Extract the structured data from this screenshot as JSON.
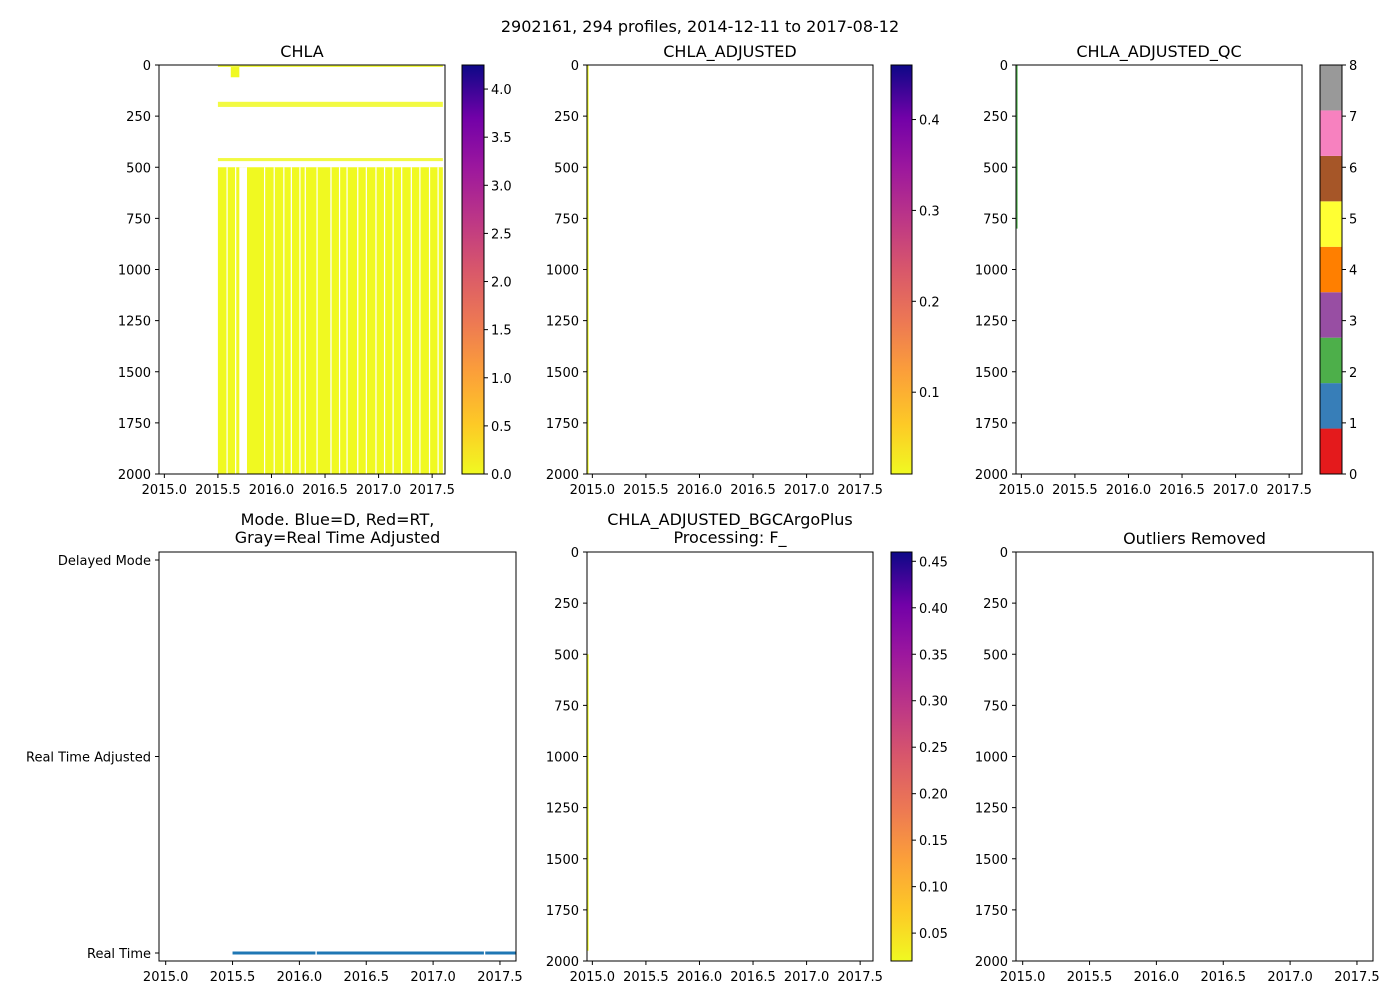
{
  "suptitle": "2902161, 294 profiles, 2014-12-11 to 2017-08-12",
  "chart_data": [
    {
      "id": "chla",
      "type": "heatmap",
      "title": "CHLA",
      "xlim": [
        2014.95,
        2017.62
      ],
      "ylim": [
        2000,
        0
      ],
      "xticks": [
        2015.0,
        2015.5,
        2016.0,
        2016.5,
        2017.0,
        2017.5
      ],
      "yticks": [
        0,
        250,
        500,
        750,
        1000,
        1250,
        1500,
        1750,
        2000
      ],
      "data_color": "#f0f921",
      "data_extent": {
        "x": [
          2015.5,
          2017.6
        ],
        "y": [
          0,
          2000
        ]
      },
      "colorbar": {
        "cmap": "plasma_r",
        "range": [
          0,
          4.25
        ],
        "ticks": [
          "0.0",
          "0.5",
          "1.0",
          "1.5",
          "2.0",
          "2.5",
          "3.0",
          "3.5",
          "4.0"
        ],
        "tick_values": [
          0,
          0.5,
          1.0,
          1.5,
          2.0,
          2.5,
          3.0,
          3.5,
          4.0
        ]
      }
    },
    {
      "id": "chla-adjusted",
      "type": "heatmap",
      "title": "CHLA_ADJUSTED",
      "xlim": [
        2014.95,
        2017.62
      ],
      "ylim": [
        2000,
        0
      ],
      "xticks": [
        2015.0,
        2015.5,
        2016.0,
        2016.5,
        2017.0,
        2017.5
      ],
      "yticks": [
        0,
        250,
        500,
        750,
        1000,
        1250,
        1500,
        1750,
        2000
      ],
      "data_color": "#f0f921",
      "data_extent": {
        "x": [
          2014.95,
          2014.96
        ],
        "y": [
          0,
          2000
        ]
      },
      "colorbar": {
        "cmap": "plasma_r",
        "range": [
          0.01,
          0.46
        ],
        "ticks": [
          "0.1",
          "0.2",
          "0.3",
          "0.4"
        ],
        "tick_values": [
          0.1,
          0.2,
          0.3,
          0.4
        ]
      }
    },
    {
      "id": "chla-adjusted-qc",
      "type": "heatmap",
      "title": "CHLA_ADJUSTED_QC",
      "xlim": [
        2014.95,
        2017.62
      ],
      "ylim": [
        2000,
        0
      ],
      "xticks": [
        2015.0,
        2015.5,
        2016.0,
        2016.5,
        2017.0,
        2017.5
      ],
      "yticks": [
        0,
        250,
        500,
        750,
        1000,
        1250,
        1500,
        1750,
        2000
      ],
      "data_color": "#4daf4a",
      "data_extent": {
        "x": [
          2014.95,
          2014.96
        ],
        "y": [
          0,
          800
        ]
      },
      "colorbar": {
        "cmap": "categorical",
        "range": [
          0,
          8
        ],
        "ticks": [
          "0",
          "1",
          "2",
          "3",
          "4",
          "5",
          "6",
          "7",
          "8"
        ],
        "tick_values": [
          0,
          1,
          2,
          3,
          4,
          5,
          6,
          7,
          8
        ],
        "segment_colors": [
          "#e41a1c",
          "#377eb8",
          "#4daf4a",
          "#984ea3",
          "#ff7f00",
          "#ffff33",
          "#a65628",
          "#f781bf",
          "#999999"
        ]
      }
    },
    {
      "id": "mode",
      "type": "line",
      "title_lines": [
        "Mode. Blue=D, Red=RT,",
        "Gray=Real Time Adjusted"
      ],
      "xlim": [
        2014.95,
        2017.62
      ],
      "ylim": [
        0,
        2
      ],
      "xticks": [
        2015.0,
        2015.5,
        2016.0,
        2016.5,
        2017.0,
        2017.5
      ],
      "ytick_labels": [
        "Real Time",
        "Real Time Adjusted",
        "Delayed Mode"
      ],
      "ytick_values": [
        0,
        1,
        2
      ],
      "series": [
        {
          "name": "Real Time",
          "color": "#1f77b4",
          "x": [
            2015.5,
            2016.12
          ],
          "y": [
            0,
            0
          ]
        },
        {
          "name": "Real Time",
          "color": "#1f77b4",
          "x": [
            2016.13,
            2017.38
          ],
          "y": [
            0,
            0
          ]
        },
        {
          "name": "Real Time",
          "color": "#1f77b4",
          "x": [
            2017.39,
            2017.62
          ],
          "y": [
            0,
            0
          ]
        }
      ]
    },
    {
      "id": "chla-bgcargoplus",
      "type": "heatmap",
      "title_lines": [
        "CHLA_ADJUSTED_BGCArgoPlus",
        "Processing: F_"
      ],
      "xlim": [
        2014.95,
        2017.62
      ],
      "ylim": [
        2000,
        0
      ],
      "xticks": [
        2015.0,
        2015.5,
        2016.0,
        2016.5,
        2017.0,
        2017.5
      ],
      "yticks": [
        0,
        250,
        500,
        750,
        1000,
        1250,
        1500,
        1750,
        2000
      ],
      "data_color": "#f0f921",
      "data_extent": {
        "x": [
          2014.95,
          2014.96
        ],
        "y": [
          500,
          1950
        ]
      },
      "colorbar": {
        "cmap": "plasma_r",
        "range": [
          0.02,
          0.46
        ],
        "ticks": [
          "0.05",
          "0.10",
          "0.15",
          "0.20",
          "0.25",
          "0.30",
          "0.35",
          "0.40",
          "0.45"
        ],
        "tick_values": [
          0.05,
          0.1,
          0.15,
          0.2,
          0.25,
          0.3,
          0.35,
          0.4,
          0.45
        ]
      }
    },
    {
      "id": "outliers",
      "type": "scatter",
      "title": "Outliers Removed",
      "xlim": [
        2014.95,
        2017.62
      ],
      "ylim": [
        2000,
        0
      ],
      "xticks": [
        2015.0,
        2015.5,
        2016.0,
        2016.5,
        2017.0,
        2017.5
      ],
      "yticks": [
        0,
        250,
        500,
        750,
        1000,
        1250,
        1500,
        1750,
        2000
      ],
      "points": []
    }
  ]
}
